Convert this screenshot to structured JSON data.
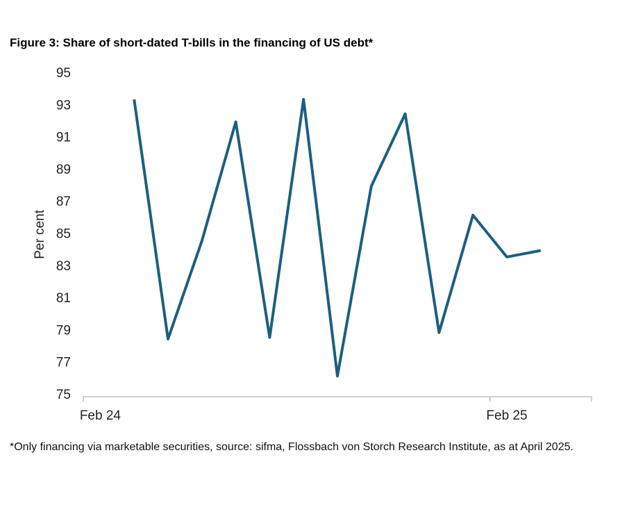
{
  "chart_data": {
    "type": "line",
    "title": "Figure 3: Share of short-dated T-bills in the financing of US debt*",
    "y_label": "Per cent",
    "footnote": "*Only financing via marketable securities, source: sifma, Flossbach von Storch Research Institute, as at April 2025.",
    "categories": [
      "Feb 24",
      null,
      null,
      null,
      null,
      null,
      null,
      null,
      null,
      null,
      null,
      null,
      "Feb 25",
      null,
      null
    ],
    "series": [
      {
        "name": "Share of short-dated T-bills",
        "color": "#1c5f7f",
        "values": [
          null,
          93.4,
          78.5,
          84.6,
          92.0,
          78.6,
          93.4,
          76.2,
          88.0,
          92.5,
          78.9,
          86.2,
          83.6,
          84.0,
          null
        ]
      }
    ],
    "ylim": [
      75,
      95
    ],
    "yticks": [
      75,
      77,
      79,
      81,
      83,
      85,
      87,
      89,
      91,
      93,
      95
    ],
    "grid": false,
    "legend": false
  }
}
